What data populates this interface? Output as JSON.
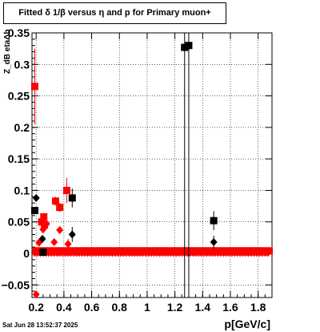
{
  "title": "Fitted δ 1/β versus η and p for Primary muon+",
  "timestamp": "Sat Jun 28 13:52:37 2025",
  "chart_data": {
    "type": "scatter",
    "title": "Fitted δ 1/β versus η and p for Primary muon+",
    "xlabel": "p[GeV/c]",
    "ylabel": "Z_dB etaΔb",
    "xlim": [
      0.17,
      1.9
    ],
    "ylim": [
      -0.07,
      0.35
    ],
    "xticks": [
      0.2,
      0.4,
      0.6,
      0.8,
      1,
      1.2,
      1.4,
      1.6,
      1.8
    ],
    "xtick_labels": [
      "0.2",
      "0.4",
      "0.6",
      "0.8",
      "1",
      "1.2",
      "1.4",
      "1.6",
      "1.8"
    ],
    "yticks": [
      -0.05,
      0,
      0.05,
      0.1,
      0.15,
      0.2,
      0.25,
      0.3,
      0.35
    ],
    "ytick_labels": [
      "−0.05",
      "0",
      "0.05",
      "0.1",
      "0.15",
      "0.2",
      "0.25",
      "0.3",
      "0.35"
    ],
    "grid": true,
    "series": [
      {
        "color": "#000000",
        "marker": "square",
        "points": [
          {
            "x": 0.19,
            "y": 0.068,
            "err": 0.004
          },
          {
            "x": 0.25,
            "y": 0.002,
            "err": 0.003
          },
          {
            "x": 0.46,
            "y": 0.088,
            "err": 0.015
          },
          {
            "x": 1.27,
            "y": 0.327,
            "err": 0.4
          },
          {
            "x": 1.3,
            "y": 0.33,
            "err": 0.4
          },
          {
            "x": 1.48,
            "y": 0.052,
            "err": 0.015
          }
        ]
      },
      {
        "color": "#000000",
        "marker": "diamond",
        "points": [
          {
            "x": 0.2,
            "y": 0.088,
            "err": 0.005
          },
          {
            "x": 0.245,
            "y": 0.023,
            "err": 0.004
          },
          {
            "x": 0.46,
            "y": 0.03,
            "err": 0.012
          },
          {
            "x": 1.48,
            "y": 0.018,
            "err": 0.01
          }
        ]
      },
      {
        "color": "#ff0000",
        "marker": "square",
        "points": [
          {
            "x": 0.19,
            "y": 0.265,
            "err": 0.06
          },
          {
            "x": 0.24,
            "y": 0.05,
            "err": 0.005
          },
          {
            "x": 0.255,
            "y": 0.058,
            "err": 0.006
          },
          {
            "x": 0.26,
            "y": 0.045,
            "err": 0.006
          },
          {
            "x": 0.34,
            "y": 0.083,
            "err": 0.007
          },
          {
            "x": 0.37,
            "y": 0.073,
            "err": 0.007
          },
          {
            "x": 0.42,
            "y": 0.1,
            "err": 0.02
          }
        ]
      },
      {
        "color": "#ff0000",
        "marker": "diamond",
        "points": [
          {
            "x": 0.2,
            "y": -0.065,
            "err": 0.004
          },
          {
            "x": 0.22,
            "y": 0.017,
            "err": 0.004
          },
          {
            "x": 0.25,
            "y": 0.038,
            "err": 0.005
          },
          {
            "x": 0.275,
            "y": 0.047,
            "err": 0.006
          },
          {
            "x": 0.33,
            "y": 0.018,
            "err": 0.005
          },
          {
            "x": 0.37,
            "y": 0.037,
            "err": 0.006
          },
          {
            "x": 0.43,
            "y": 0.015,
            "err": 0.008
          }
        ]
      }
    ],
    "band": {
      "x_start": 0.19,
      "x_end": 1.87,
      "step": 0.02,
      "red_square_y": 0.004,
      "red_diamond_y": 0.001,
      "black_y": 0.0015
    }
  }
}
